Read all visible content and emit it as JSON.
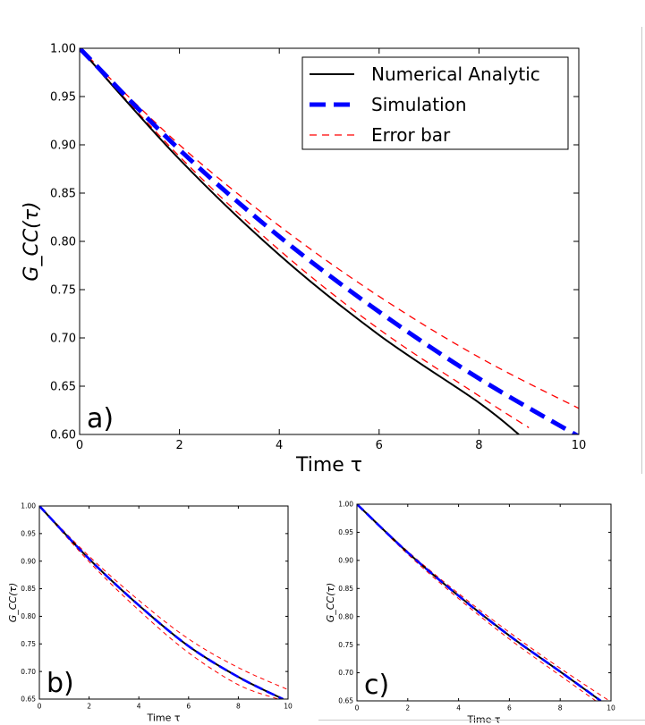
{
  "colors": {
    "analytic": "#000000",
    "simulation": "#0000ff",
    "error_bar": "#ff0000",
    "axes": "#000000",
    "background": "#ffffff"
  },
  "chart_data": [
    {
      "type": "line",
      "panel_label": "a)",
      "xlabel": "Time τ",
      "ylabel": "G_CC(τ)",
      "xlim": [
        0,
        10
      ],
      "ylim": [
        0.6,
        1.0
      ],
      "xticks": [
        "0",
        "2",
        "4",
        "6",
        "8",
        "10"
      ],
      "yticks": [
        "0.60",
        "0.65",
        "0.70",
        "0.75",
        "0.80",
        "0.85",
        "0.90",
        "0.95",
        "1.00"
      ],
      "legend_position": "top-right",
      "legend": [
        "Numerical Analytic",
        "Simulation",
        "Error bar"
      ],
      "grid": false,
      "series": [
        {
          "name": "Numerical Analytic",
          "style": "solid",
          "x": [
            0,
            2,
            4,
            6,
            8,
            8.8
          ],
          "y": [
            1.0,
            0.885,
            0.786,
            0.703,
            0.633,
            0.6
          ]
        },
        {
          "name": "Simulation",
          "style": "thick-dashed",
          "x": [
            0,
            2,
            4,
            6,
            8,
            10
          ],
          "y": [
            1.0,
            0.895,
            0.805,
            0.727,
            0.658,
            0.598
          ]
        },
        {
          "name": "Error bar",
          "style": "thin-dashed",
          "x": [
            0,
            2,
            4,
            6,
            8,
            10
          ],
          "y": [
            1.0,
            0.9,
            0.816,
            0.743,
            0.68,
            0.627
          ]
        },
        {
          "name": "Error bar",
          "style": "thin-dashed",
          "x": [
            0,
            2,
            4,
            6,
            8,
            9
          ],
          "y": [
            1.0,
            0.888,
            0.791,
            0.709,
            0.64,
            0.607
          ]
        }
      ]
    },
    {
      "type": "line",
      "panel_label": "b)",
      "xlabel": "Time τ",
      "ylabel": "G_CC(τ)",
      "xlim": [
        0,
        10
      ],
      "ylim": [
        0.65,
        1.0
      ],
      "xticks": [
        "0",
        "2",
        "4",
        "6",
        "8",
        "10"
      ],
      "yticks": [
        "0.65",
        "0.70",
        "0.75",
        "0.80",
        "0.85",
        "0.90",
        "0.95",
        "1.00"
      ],
      "grid": false,
      "series": [
        {
          "name": "Numerical Analytic",
          "style": "solid",
          "x": [
            0,
            2,
            4,
            6,
            8,
            9.8
          ],
          "y": [
            1.0,
            0.904,
            0.82,
            0.746,
            0.69,
            0.65
          ]
        },
        {
          "name": "Simulation",
          "style": "thick-dashed",
          "x": [
            0,
            2,
            4,
            6,
            8,
            9.8
          ],
          "y": [
            1.0,
            0.904,
            0.82,
            0.746,
            0.69,
            0.65
          ]
        },
        {
          "name": "Error bar",
          "style": "thin-dashed",
          "x": [
            0,
            2,
            4,
            6,
            8,
            10
          ],
          "y": [
            1.0,
            0.909,
            0.829,
            0.759,
            0.707,
            0.667
          ]
        },
        {
          "name": "Error bar",
          "style": "thin-dashed",
          "x": [
            0,
            2,
            4,
            6,
            8,
            9.6
          ],
          "y": [
            1.0,
            0.899,
            0.811,
            0.734,
            0.676,
            0.65
          ]
        }
      ]
    },
    {
      "type": "line",
      "panel_label": "c)",
      "xlabel": "Time τ",
      "ylabel": "G_CC(τ)",
      "xlim": [
        0,
        10
      ],
      "ylim": [
        0.65,
        1.0
      ],
      "xticks": [
        "0",
        "2",
        "4",
        "6",
        "8",
        "10"
      ],
      "yticks": [
        "0.65",
        "0.70",
        "0.75",
        "0.80",
        "0.85",
        "0.90",
        "0.95",
        "1.00"
      ],
      "grid": false,
      "series": [
        {
          "name": "Numerical Analytic",
          "style": "solid",
          "x": [
            0,
            2,
            4,
            6,
            8,
            9.6
          ],
          "y": [
            1.0,
            0.914,
            0.837,
            0.766,
            0.702,
            0.65
          ]
        },
        {
          "name": "Simulation",
          "style": "thick-dashed",
          "x": [
            0,
            2,
            4,
            6,
            8,
            9.6
          ],
          "y": [
            1.0,
            0.914,
            0.837,
            0.766,
            0.702,
            0.65
          ]
        },
        {
          "name": "Error bar",
          "style": "thin-dashed",
          "x": [
            0,
            2,
            4,
            6,
            8,
            9.9
          ],
          "y": [
            1.0,
            0.916,
            0.841,
            0.772,
            0.708,
            0.651
          ]
        },
        {
          "name": "Error bar",
          "style": "thin-dashed",
          "x": [
            0,
            2,
            4,
            6,
            8,
            9.4
          ],
          "y": [
            1.0,
            0.911,
            0.832,
            0.76,
            0.695,
            0.65
          ]
        }
      ]
    }
  ]
}
